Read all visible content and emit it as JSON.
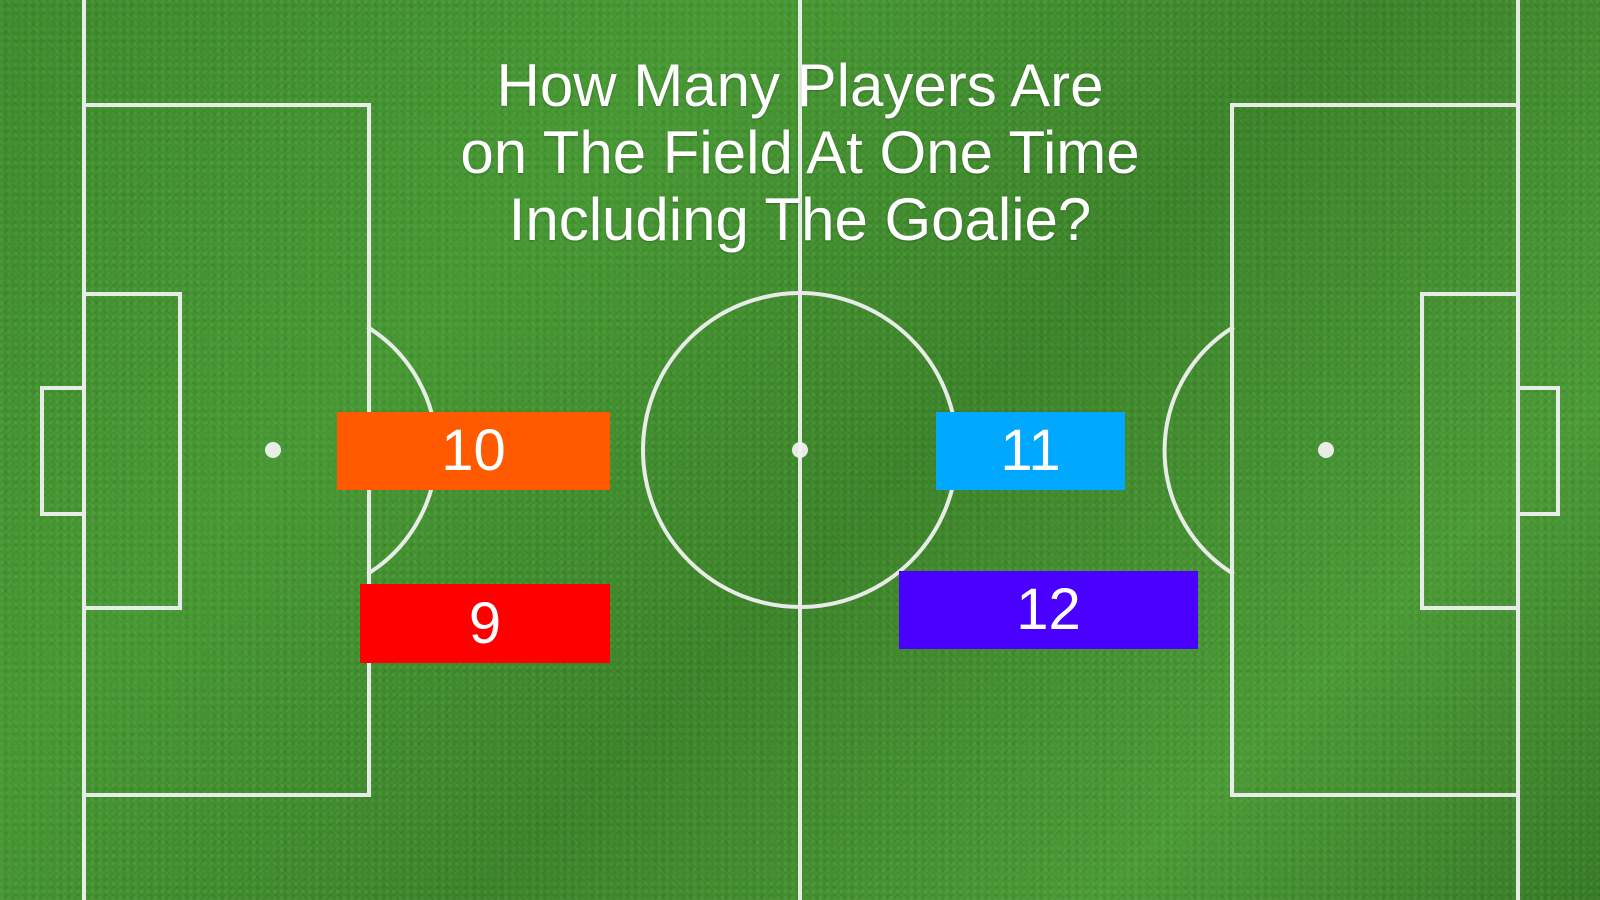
{
  "question": {
    "lines": [
      "How Many Players Are",
      "on The Field At One Time",
      "Including The Goalie?"
    ]
  },
  "answers": [
    {
      "label": "10",
      "color": "#ff5a00"
    },
    {
      "label": "11",
      "color": "#00a8ff"
    },
    {
      "label": "9",
      "color": "#ff0000"
    },
    {
      "label": "12",
      "color": "#4a00ff"
    }
  ],
  "colors": {
    "grass": "#3f8a2c",
    "lines": "#f2f2f2",
    "text": "#ffffff"
  }
}
